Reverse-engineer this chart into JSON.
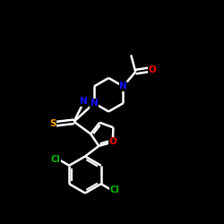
{
  "background_color": "#000000",
  "bond_color": "#ffffff",
  "atom_colors": {
    "O": "#ff0000",
    "N": "#1010ff",
    "S": "#ffa500",
    "Cl": "#00bb00",
    "C": "#ffffff"
  },
  "figsize": [
    2.5,
    2.5
  ],
  "dpi": 100,
  "xlim": [
    0,
    10
  ],
  "ylim": [
    0,
    10
  ]
}
